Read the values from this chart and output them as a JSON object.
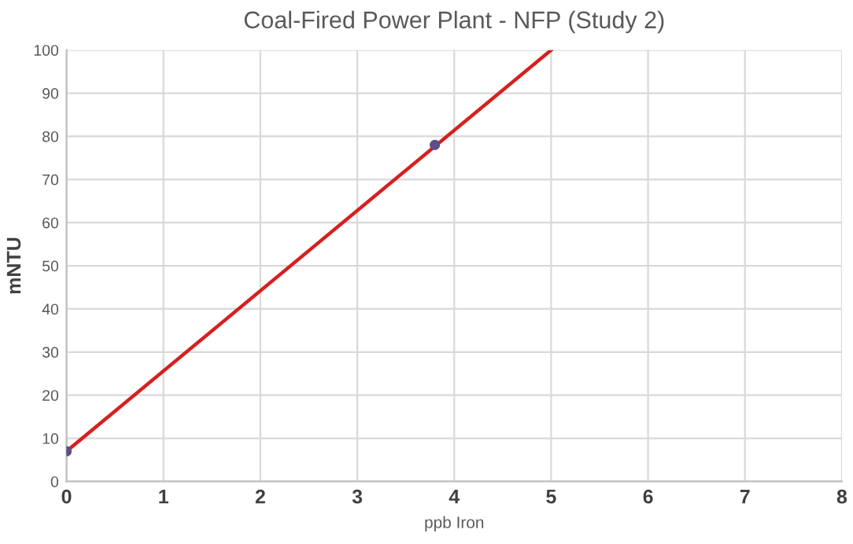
{
  "chart_data": {
    "type": "scatter",
    "title": "Coal-Fired Power Plant - NFP (Study 2)",
    "xlabel": "ppb Iron",
    "ylabel": "mNTU",
    "series": [
      {
        "color": "#5a4f8a",
        "x": [
          0,
          3.8
        ],
        "values": [
          7,
          78
        ],
        "marker": "circle"
      },
      {
        "type": "line",
        "color": "#d62020",
        "x": [
          0,
          5
        ],
        "values": [
          7,
          100
        ],
        "marker": "none",
        "line_style": "solid"
      }
    ],
    "xlim": [
      0,
      8
    ],
    "xticks": [
      0,
      1,
      2,
      3,
      4,
      5,
      6,
      7,
      8
    ],
    "ylim": [
      0,
      100
    ],
    "yticks": [
      0,
      10,
      20,
      30,
      40,
      50,
      60,
      70,
      80,
      90,
      100
    ],
    "grid": true,
    "legend": false
  }
}
